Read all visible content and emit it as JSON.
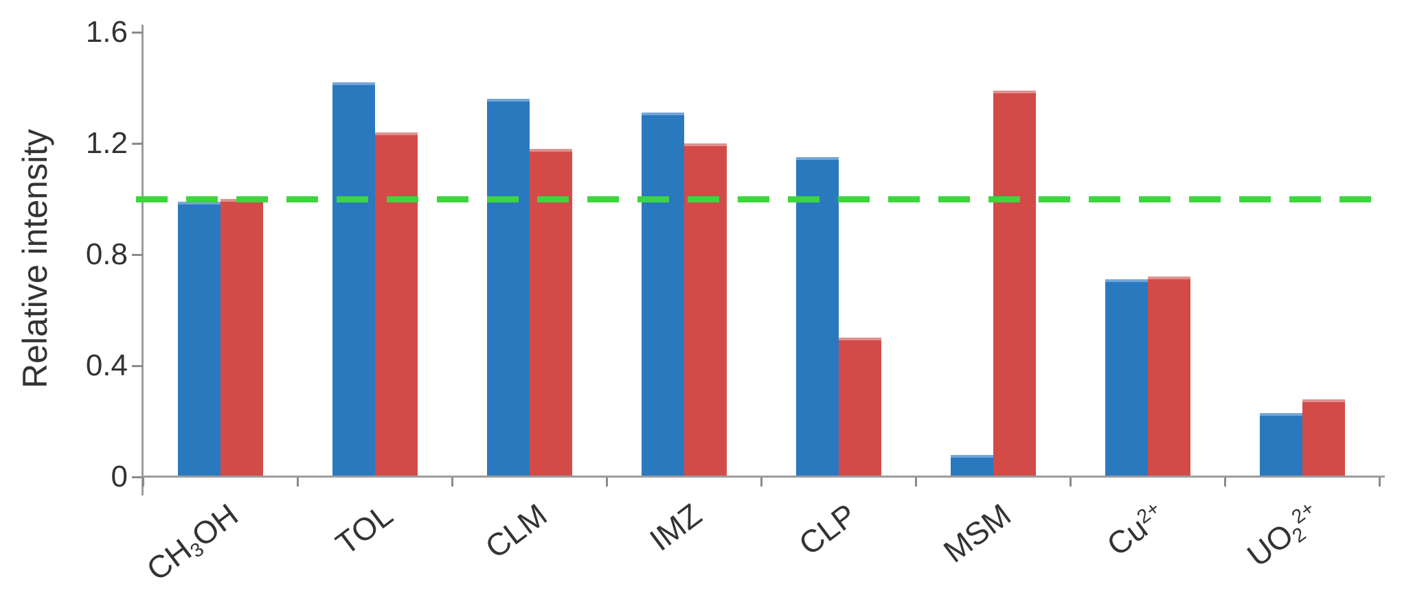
{
  "chart_data": {
    "type": "bar",
    "title": "",
    "ylabel": "Relative intensity",
    "xlabel": "",
    "ylim": [
      0,
      1.6
    ],
    "ytick_labels": [
      "0",
      "0.4",
      "0.8",
      "1.2",
      "1.6"
    ],
    "ytick_values": [
      0,
      0.4,
      0.8,
      1.2,
      1.6
    ],
    "grid": false,
    "legend": "none",
    "categories": [
      {
        "label": "CH3OH",
        "parts": [
          {
            "t": "CH"
          },
          {
            "t": "3",
            "s": "sub"
          },
          {
            "t": "OH"
          }
        ]
      },
      {
        "label": "TOL",
        "parts": [
          {
            "t": "TOL"
          }
        ]
      },
      {
        "label": "CLM",
        "parts": [
          {
            "t": "CLM"
          }
        ]
      },
      {
        "label": "IMZ",
        "parts": [
          {
            "t": "IMZ"
          }
        ]
      },
      {
        "label": "CLP",
        "parts": [
          {
            "t": "CLP"
          }
        ]
      },
      {
        "label": "MSM",
        "parts": [
          {
            "t": "MSM"
          }
        ]
      },
      {
        "label": "Cu2+",
        "parts": [
          {
            "t": "Cu"
          },
          {
            "t": "2+",
            "s": "sup"
          }
        ]
      },
      {
        "label": "UO22+",
        "parts": [
          {
            "t": "UO"
          },
          {
            "t": "2",
            "s": "sub"
          },
          {
            "t": "2+",
            "s": "sup"
          }
        ]
      }
    ],
    "series": [
      {
        "name": "blue",
        "color": "#2A79BE",
        "edge_color": "#72A4D8",
        "values": [
          0.99,
          1.42,
          1.36,
          1.31,
          1.15,
          0.08,
          0.71,
          0.23
        ]
      },
      {
        "name": "red",
        "color": "#D24B49",
        "edge_color": "#DF918F",
        "values": [
          1.0,
          1.24,
          1.18,
          1.2,
          0.5,
          1.39,
          0.72,
          0.28
        ]
      }
    ],
    "reference_line": {
      "value": 1.0,
      "color": "#3ED53E",
      "style": "dashed"
    },
    "axis_color": "#9C9C9C",
    "tick_color": "#8A8A8A",
    "text_color": "#333333"
  }
}
